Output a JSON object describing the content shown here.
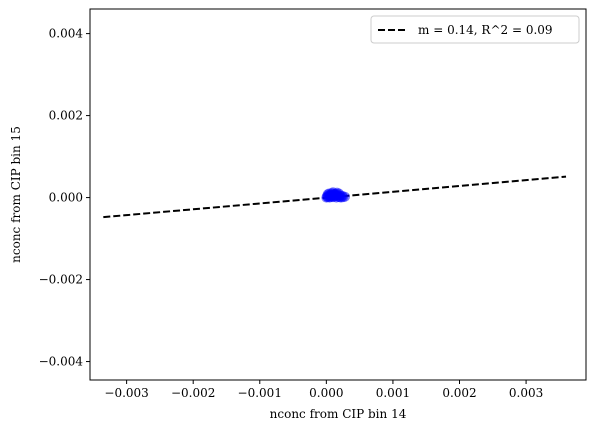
{
  "chart_data": {
    "type": "scatter",
    "xlabel": "nconc from CIP bin 14",
    "ylabel": "nconc from CIP bin 15",
    "xlim": [
      -0.00355,
      0.0039
    ],
    "ylim": [
      -0.00445,
      0.0046
    ],
    "xticks": [
      -0.003,
      -0.002,
      -0.001,
      0.0,
      0.001,
      0.002,
      0.003
    ],
    "xtick_labels": [
      "−0.003",
      "−0.002",
      "−0.001",
      "0.000",
      "0.001",
      "0.002",
      "0.003"
    ],
    "yticks": [
      -0.004,
      -0.002,
      0.0,
      0.002,
      0.004
    ],
    "ytick_labels": [
      "−0.004",
      "−0.002",
      "0.000",
      "0.002",
      "0.004"
    ],
    "grid": false,
    "legend_position": "top-right",
    "series": [
      {
        "kind": "scatter",
        "color": "#0000ff",
        "points": [
          [
            0.0,
            0.0
          ],
          [
            2e-05,
            1e-05
          ],
          [
            5e-05,
            0.0
          ],
          [
            8e-05,
            2e-05
          ],
          [
            0.0001,
            1e-05
          ],
          [
            0.00012,
            3e-05
          ],
          [
            0.00015,
            0.0
          ],
          [
            0.00018,
            2e-05
          ],
          [
            0.0002,
            1e-05
          ],
          [
            0.00022,
            0.0
          ],
          [
            0.00025,
            1e-05
          ],
          [
            3e-05,
            5e-05
          ],
          [
            6e-05,
            7e-05
          ],
          [
            9e-05,
            6e-05
          ],
          [
            0.00013,
            8e-05
          ],
          [
            0.00017,
            6e-05
          ],
          [
            0.00021,
            5e-05
          ],
          [
            4e-05,
            0.0001
          ],
          [
            8e-05,
            0.00011
          ],
          [
            0.00011,
            9e-05
          ],
          [
            0.00016,
            0.00012
          ],
          [
            0.00019,
            0.0001
          ],
          [
            1e-05,
            3e-05
          ],
          [
            7e-05,
            4e-05
          ],
          [
            0.00014,
            4e-05
          ],
          [
            0.00024,
            4e-05
          ],
          [
            0.0001,
            0.00013
          ],
          [
            2e-05,
            8e-05
          ],
          [
            0.00015,
            9e-05
          ],
          [
            6e-05,
            2e-05
          ],
          [
            0.00028,
            2e-05
          ],
          [
            0.00012,
            6e-05
          ]
        ]
      },
      {
        "kind": "line",
        "name": "m = 0.14, R^2 = 0.09",
        "color": "#000000",
        "dash": "dashed",
        "x": [
          -0.00335,
          0.0036
        ],
        "y": [
          -0.000478,
          0.000512
        ]
      }
    ]
  }
}
